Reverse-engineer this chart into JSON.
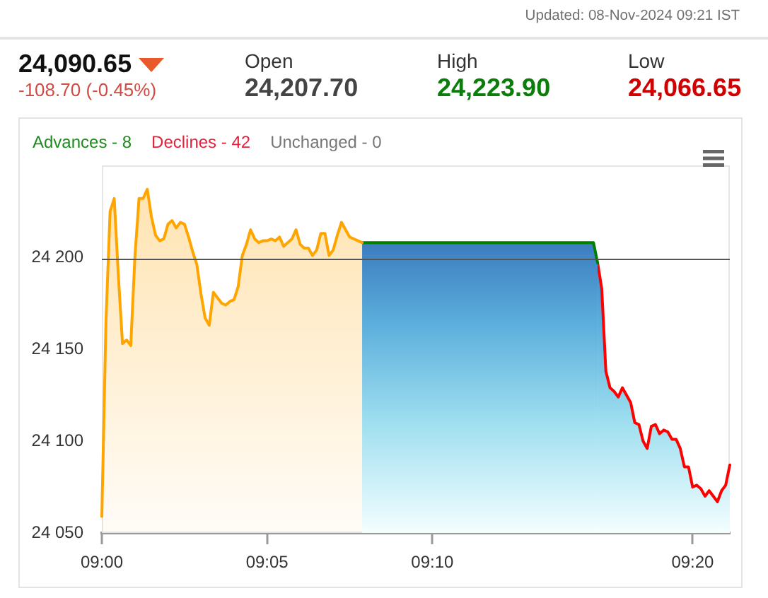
{
  "chart_data": [
    {
      "type": "other",
      "annotations": [
        "Updated: 08-Nov-2024 09:21 IST",
        "24,090.65",
        "-108.70 (-0.45%)",
        "Open",
        "24,207.70",
        "High",
        "24,223.90",
        "Low",
        "24,066.65"
      ]
    },
    {
      "type": "area",
      "annotations": [
        "Advances - 8",
        "Declines - 42",
        "Unchanged - 0"
      ],
      "categories": [
        "09:00",
        null,
        null,
        null,
        null,
        null,
        null,
        null,
        null,
        null,
        null,
        null,
        null,
        null,
        null,
        null,
        null,
        null,
        null,
        null,
        null,
        null,
        null,
        null,
        null,
        null,
        null,
        null,
        null,
        null,
        null,
        null,
        null,
        null,
        null,
        null,
        null,
        null,
        null,
        null,
        "09:05",
        null,
        null,
        null,
        null,
        null,
        null,
        null,
        null,
        null,
        null,
        null,
        null,
        null,
        null,
        null,
        null,
        null,
        null,
        null,
        null,
        null,
        null,
        null,
        null,
        null,
        null,
        null,
        null,
        null,
        null,
        null,
        null,
        null,
        null,
        null,
        null,
        null,
        null,
        null,
        "09:10",
        null,
        null,
        null,
        null,
        null,
        null,
        null,
        null,
        null,
        null,
        null,
        null,
        null,
        null,
        null,
        null,
        null,
        null,
        null,
        null,
        null,
        null,
        null,
        null,
        null,
        null,
        null,
        null,
        null,
        null,
        null,
        null,
        null,
        null,
        null,
        null,
        null,
        null,
        null,
        null,
        null,
        null,
        null,
        null,
        null,
        null,
        null,
        null,
        null,
        null,
        null,
        null,
        null,
        null,
        null,
        null,
        null,
        null,
        null,
        null,
        null,
        null,
        "09:20",
        null,
        null,
        null,
        null,
        null,
        null,
        null,
        null,
        null
      ],
      "series": [
        {
          "color": "#ffa500",
          "values": [
            24059,
            24165,
            24225,
            24232,
            24190,
            24153,
            24155,
            24152,
            24200,
            24232,
            24232,
            24237,
            24222,
            24212,
            24209,
            24210,
            24218,
            24220,
            24216,
            24219,
            24218,
            24211,
            24203,
            24196,
            24180,
            24167,
            24163,
            24181,
            24178,
            24175,
            24174,
            24176,
            24177,
            24184,
            24201,
            24207,
            24215,
            24210,
            24208,
            24209,
            24209,
            24210,
            24209,
            24211,
            24206,
            24208,
            24210,
            24215,
            24207,
            24205,
            24205,
            24201,
            24204,
            24213,
            24213,
            24201,
            24204,
            24212,
            24219,
            24215,
            24211,
            24210,
            24209,
            24208,
            null,
            null,
            null,
            null,
            null,
            null,
            null,
            null,
            null,
            null,
            null,
            null,
            null,
            null,
            null,
            null,
            null,
            null,
            null,
            null,
            null,
            null,
            null,
            null,
            null,
            null,
            null,
            null,
            null,
            null,
            null,
            null,
            null,
            null,
            null,
            null,
            null,
            null,
            null,
            null,
            null,
            null,
            null,
            null,
            null,
            null,
            null,
            null,
            null,
            null,
            null,
            null,
            null,
            null,
            null,
            null,
            null,
            null,
            null,
            null,
            null,
            null,
            null,
            null,
            null,
            null,
            null,
            null,
            null,
            null,
            null,
            null,
            null,
            null,
            null,
            null,
            null,
            null,
            null,
            null,
            null,
            null,
            null,
            null,
            null,
            null,
            null,
            null,
            null
          ]
        },
        {
          "color": "#008000",
          "values": [
            null,
            null,
            null,
            null,
            null,
            null,
            null,
            null,
            null,
            null,
            null,
            null,
            null,
            null,
            null,
            null,
            null,
            null,
            null,
            null,
            null,
            null,
            null,
            null,
            null,
            null,
            null,
            null,
            null,
            null,
            null,
            null,
            null,
            null,
            null,
            null,
            null,
            null,
            null,
            null,
            null,
            null,
            null,
            null,
            null,
            null,
            null,
            null,
            null,
            null,
            null,
            null,
            null,
            null,
            null,
            null,
            null,
            null,
            null,
            null,
            null,
            null,
            null,
            24208,
            24208,
            24208,
            24208,
            24208,
            24208,
            24208,
            24208,
            24208,
            24208,
            24208,
            24208,
            24208,
            24208,
            24208,
            24208,
            24208,
            24208,
            24208,
            24208,
            24208,
            24208,
            24208,
            24208,
            24208,
            24208,
            24208,
            24208,
            24208,
            24208,
            24208,
            24208,
            24208,
            24208,
            24208,
            24208,
            24208,
            24208,
            24208,
            24208,
            24208,
            24208,
            24208,
            24208,
            24208,
            24208,
            24208,
            24208,
            24208,
            24208,
            24208,
            24208,
            24208,
            24208,
            24208,
            24208,
            24208,
            24197,
            null,
            null,
            null,
            null,
            null,
            null,
            null,
            null,
            null,
            null,
            null,
            null,
            null,
            null,
            null,
            null,
            null,
            null,
            null,
            null,
            null,
            null,
            null,
            null,
            null,
            null,
            null,
            null,
            null,
            null,
            null,
            null
          ]
        },
        {
          "color": "#ff0000",
          "values": [
            null,
            null,
            null,
            null,
            null,
            null,
            null,
            null,
            null,
            null,
            null,
            null,
            null,
            null,
            null,
            null,
            null,
            null,
            null,
            null,
            null,
            null,
            null,
            null,
            null,
            null,
            null,
            null,
            null,
            null,
            null,
            null,
            null,
            null,
            null,
            null,
            null,
            null,
            null,
            null,
            null,
            null,
            null,
            null,
            null,
            null,
            null,
            null,
            null,
            null,
            null,
            null,
            null,
            null,
            null,
            null,
            null,
            null,
            null,
            null,
            null,
            null,
            null,
            null,
            null,
            null,
            null,
            null,
            null,
            null,
            null,
            null,
            null,
            null,
            null,
            null,
            null,
            null,
            null,
            null,
            null,
            null,
            null,
            null,
            null,
            null,
            null,
            null,
            null,
            null,
            null,
            null,
            null,
            null,
            null,
            null,
            null,
            null,
            null,
            null,
            null,
            null,
            null,
            null,
            null,
            null,
            null,
            null,
            null,
            null,
            null,
            null,
            null,
            null,
            null,
            null,
            null,
            null,
            null,
            null,
            24197,
            24183,
            24138,
            24129,
            24127,
            24124,
            24129,
            24125,
            24121,
            24110,
            24109,
            24100,
            24096,
            24108,
            24109,
            24104,
            24106,
            24105,
            24101,
            24101,
            24096,
            24086,
            24086,
            24075,
            24076,
            24074,
            24070,
            24073,
            24070,
            24067,
            24073,
            24076,
            24087
          ]
        }
      ],
      "ylim": [
        24050,
        24250
      ],
      "yticks": [
        {
          "value": 24050,
          "label": "24 050"
        },
        {
          "value": 24100,
          "label": "24 100"
        },
        {
          "value": 24150,
          "label": "24 150"
        },
        {
          "value": 24200,
          "label": "24 200"
        }
      ],
      "ref_lines": [
        {
          "axis": "y",
          "value": 24199,
          "color": "#555555"
        }
      ]
    }
  ]
}
